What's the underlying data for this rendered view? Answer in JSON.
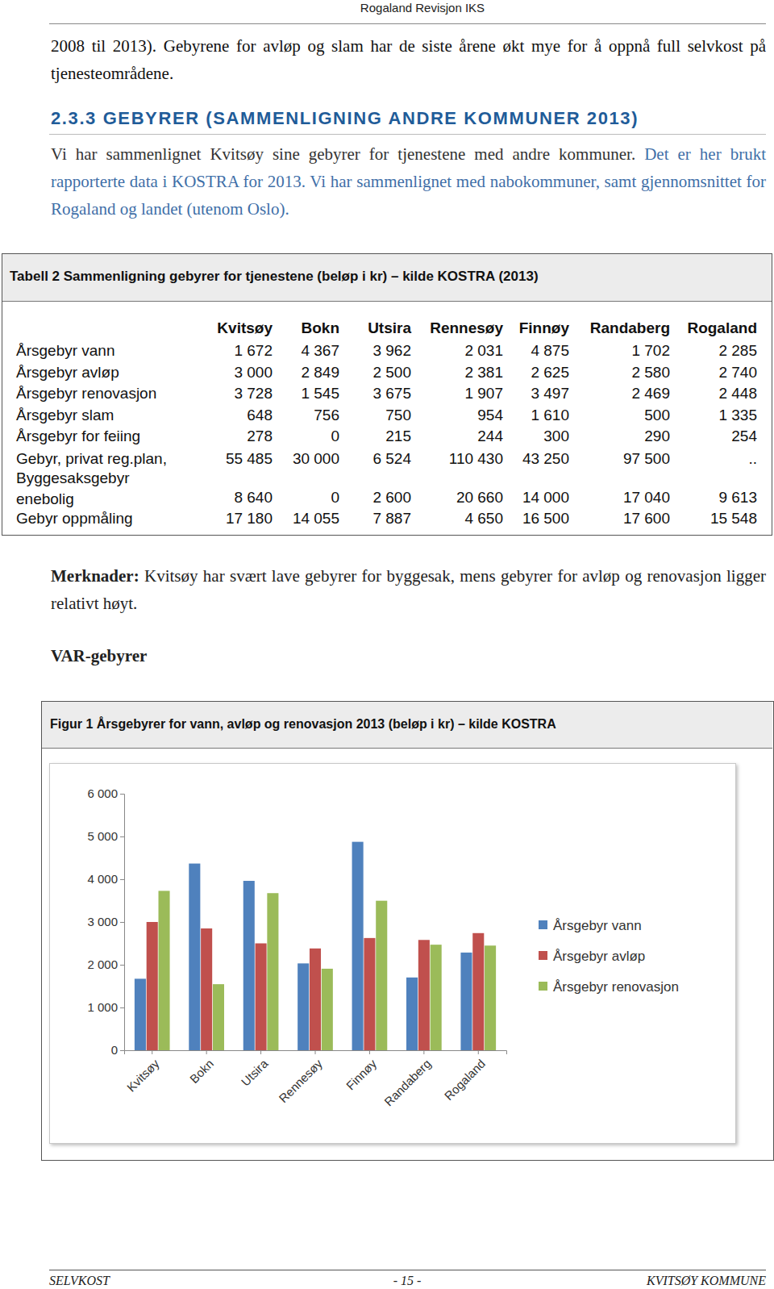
{
  "header": {
    "text": "Rogaland Revisjon IKS"
  },
  "intro": "2008 til 2013). Gebyrene for avløp og slam har de siste årene økt mye for å oppnå full selvkost på tjenesteområdene.",
  "section": {
    "heading": "2.3.3 GEBYRER (SAMMENLIGNING ANDRE KOMMUNER 2013)",
    "sentences": [
      "Vi har sammenlignet Kvitsøy sine gebyrer for tjenestene med andre kommuner.",
      "Det er her brukt rapporterte data i KOSTRA for 2013.",
      "Vi har sammenlignet med nabokommuner, samt gjennomsnittet for Rogaland og landet (utenom Oslo)."
    ]
  },
  "table": {
    "title": "Tabell 2 Sammenligning gebyrer for tjenestene (beløp i kr) – kilde KOSTRA (2013)",
    "columns": [
      "Kvitsøy",
      "Bokn",
      "Utsira",
      "Rennesøy",
      "Finnøy",
      "Randaberg",
      "Rogaland"
    ],
    "rows": [
      {
        "label": "Årsgebyr vann",
        "values": [
          "1 672",
          "4 367",
          "3 962",
          "2 031",
          "4 875",
          "1 702",
          "2 285"
        ]
      },
      {
        "label": "Årsgebyr avløp",
        "values": [
          "3 000",
          "2 849",
          "2 500",
          "2 381",
          "2 625",
          "2 580",
          "2 740"
        ]
      },
      {
        "label": "Årsgebyr renovasjon",
        "values": [
          "3 728",
          "1 545",
          "3 675",
          "1 907",
          "3 497",
          "2 469",
          "2 448"
        ]
      },
      {
        "label": "Årsgebyr slam",
        "values": [
          "648",
          "756",
          "750",
          "954",
          "1 610",
          "500",
          "1 335"
        ]
      },
      {
        "label": "Årsgebyr for feiing",
        "values": [
          "278",
          "0",
          "215",
          "244",
          "300",
          "290",
          "254"
        ]
      },
      {
        "label": "Gebyr, privat reg.plan,",
        "values": [
          "55 485",
          "30 000",
          "6 524",
          "110 430",
          "43 250",
          "97 500",
          ".."
        ]
      },
      {
        "label": "Byggesaksgebyr enebolig",
        "values": [
          "8 640",
          "0",
          "2 600",
          "20 660",
          "14 000",
          "17 040",
          "9 613"
        ]
      },
      {
        "label": "Gebyr oppmåling",
        "values": [
          "17 180",
          "14 055",
          "7 887",
          "4 650",
          "16 500",
          "17 600",
          "15 548"
        ]
      }
    ]
  },
  "remarks": {
    "label": "Merknader:",
    "text": "Kvitsøy har svært lave gebyrer for byggesak, mens gebyrer for avløp og renovasjon ligger relativt høyt."
  },
  "subheading": "VAR-gebyrer",
  "chart_data": {
    "type": "bar",
    "title": "Figur 1 Årsgebyrer for vann, avløp og renovasjon 2013 (beløp i kr) – kilde KOSTRA",
    "categories": [
      "Kvitsøy",
      "Bokn",
      "Utsira",
      "Rennesøy",
      "Finnøy",
      "Randaberg",
      "Rogaland"
    ],
    "series": [
      {
        "name": "Årsgebyr vann",
        "color": "#4f81bd",
        "values": [
          1672,
          4367,
          3962,
          2031,
          4875,
          1702,
          2285
        ]
      },
      {
        "name": "Årsgebyr avløp",
        "color": "#c0504d",
        "values": [
          3000,
          2849,
          2500,
          2381,
          2625,
          2580,
          2740
        ]
      },
      {
        "name": "Årsgebyr renovasjon",
        "color": "#9bbb59",
        "values": [
          3728,
          1545,
          3675,
          1907,
          3497,
          2469,
          2448
        ]
      }
    ],
    "ylim": [
      0,
      6000
    ],
    "yticks": [
      0,
      {
        "value": 1000,
        "label": "1 000"
      },
      {
        "value": 2000,
        "label": "2 000"
      },
      {
        "value": 3000,
        "label": "3 000"
      },
      {
        "value": 4000,
        "label": "4 000"
      },
      {
        "value": 5000,
        "label": "5 000"
      },
      {
        "value": 6000,
        "label": "6 000"
      }
    ],
    "grid": false,
    "legend": "right"
  },
  "footer": {
    "left": "SELVKOST",
    "center": "- 15 -",
    "right": "KVITSØY KOMMUNE"
  }
}
